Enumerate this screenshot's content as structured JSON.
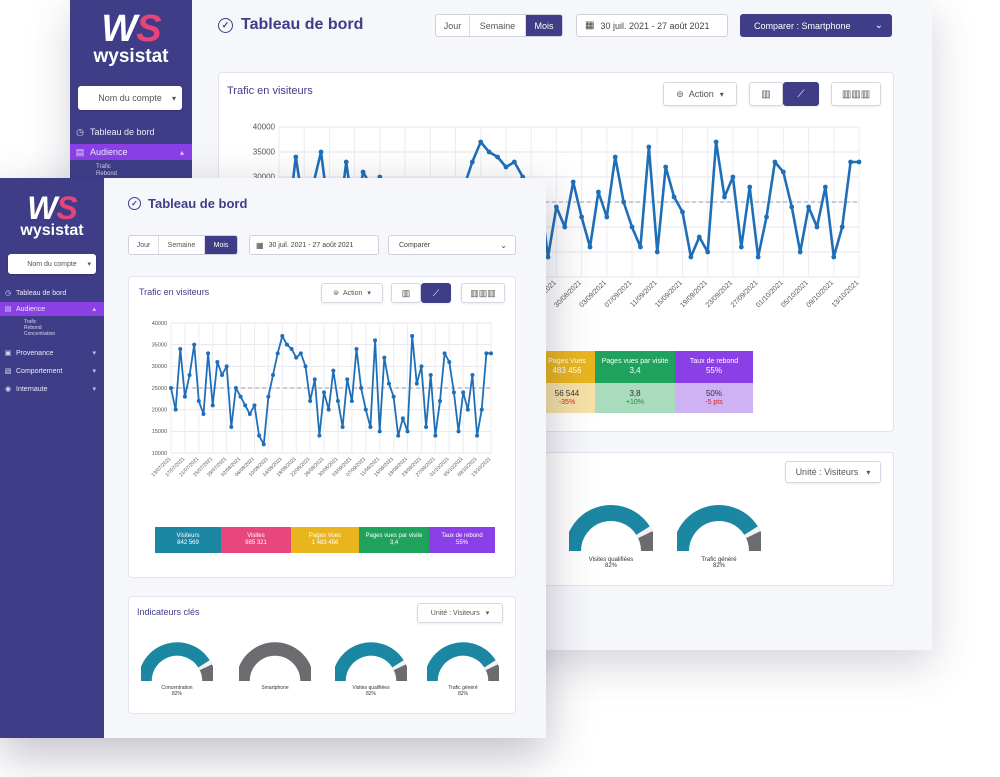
{
  "brand": {
    "mark_w": "W",
    "mark_s": "S",
    "word": "wysistat"
  },
  "sidebar": {
    "account_select": "Nom du compte",
    "items": [
      {
        "label": "Tableau de bord",
        "icon": "dashboard-icon"
      },
      {
        "label": "Audience",
        "icon": "audience-icon"
      },
      {
        "label": "Provenance",
        "icon": "provenance-icon"
      },
      {
        "label": "Comportement",
        "icon": "behavior-icon"
      },
      {
        "label": "Internaute",
        "icon": "user-icon"
      }
    ],
    "sub_items": [
      "Trafic",
      "Rebond",
      "Concentration"
    ]
  },
  "header": {
    "title": "Tableau de bord",
    "periods": [
      "Jour",
      "Semaine",
      "Mois"
    ],
    "active_period": "Mois",
    "date_range": "30 juil. 2021 - 27 août 2021",
    "compare_back": "Comparer : Smartphone",
    "compare_front": "Comparer"
  },
  "traffic": {
    "title": "Trafic en visiteurs",
    "action_label": "Action",
    "kpis": [
      {
        "label": "Visiteurs",
        "value": "842 569",
        "color": "#1b87a3"
      },
      {
        "label": "Visites",
        "value": "985 321",
        "color": "#e8477e"
      },
      {
        "label": "Pages Vues",
        "value": "1 483 456",
        "color": "#e9b51f"
      },
      {
        "label": "Pages vues par visite",
        "value": "3,4",
        "color": "#1fa35c"
      },
      {
        "label": "Taux de rebond",
        "value": "55%",
        "color": "#8a40e6"
      }
    ],
    "kpis_back": [
      {
        "label": "Pages Vues",
        "value": "483 456",
        "compare": "56 544",
        "delta": "-35%",
        "color": "#e9b51f",
        "light": "#f6e2a6"
      },
      {
        "label": "Pages vues par visite",
        "value": "3,4",
        "compare": "3,8",
        "delta": "+10%",
        "color": "#1fa35c",
        "light": "#a8dcbd"
      },
      {
        "label": "Taux de rebond",
        "value": "55%",
        "compare": "50%",
        "delta": "-5 pts",
        "color": "#8a40e6",
        "light": "#cfb2f3"
      }
    ]
  },
  "indicators": {
    "title": "Indicateurs clés",
    "unit_label": "Unité : Visiteurs",
    "gauges_front": [
      {
        "label": "Concentration",
        "value": "82%",
        "pct": 0.82
      },
      {
        "label": "Smartphone",
        "value": "",
        "pct": 0
      },
      {
        "label": "Visites qualifiées",
        "value": "82%",
        "pct": 0.82
      },
      {
        "label": "Trafic généré",
        "value": "82%",
        "pct": 0.82
      }
    ],
    "gauges_back": [
      {
        "label": "Visites qualifiées",
        "value": "82%",
        "inner": "70%",
        "pct": 0.82
      },
      {
        "label": "Trafic généré",
        "value": "82%",
        "inner": "70%",
        "pct": 0.82
      }
    ]
  },
  "chart_data": [
    {
      "type": "line",
      "title": "Trafic en visiteurs",
      "ylim": [
        10000,
        40000
      ],
      "yticks": [
        "40000",
        "35000",
        "30000",
        "25000",
        "20000",
        "15000",
        "10000"
      ],
      "xticks": [
        "13/07/2021",
        "17/07/2021",
        "21/07/2021",
        "25/07/2021",
        "29/07/2021",
        "02/08/2021",
        "06/08/2021",
        "10/08/2021",
        "14/08/2021",
        "18/08/2021",
        "22/08/2021",
        "26/08/2021",
        "30/08/2021",
        "03/09/2021",
        "07/09/2021",
        "11/09/2021",
        "15/09/2021",
        "19/09/2021",
        "23/09/2021",
        "27/09/2021",
        "01/10/2021",
        "05/10/2021",
        "09/10/2021",
        "13/10/2021"
      ],
      "reference_line": 25000,
      "values": [
        25000,
        20000,
        34000,
        23000,
        28000,
        35000,
        22000,
        19000,
        33000,
        21000,
        31000,
        28000,
        30000,
        16000,
        25000,
        23000,
        21000,
        19000,
        21000,
        14000,
        12000,
        23000,
        28000,
        33000,
        37000,
        35000,
        34000,
        32000,
        33000,
        30000,
        22000,
        27000,
        14000,
        24000,
        20000,
        29000,
        22000,
        16000,
        27000,
        22000,
        34000,
        25000,
        20000,
        16000,
        36000,
        15000,
        32000,
        26000,
        23000,
        14000,
        18000,
        15000,
        37000,
        26000,
        30000,
        16000,
        28000,
        14000,
        22000,
        33000,
        31000,
        24000,
        15000,
        24000,
        20000,
        28000,
        14000,
        20000,
        33000,
        33000
      ]
    }
  ]
}
